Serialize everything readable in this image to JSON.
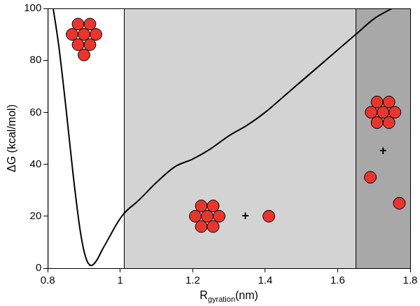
{
  "chart_data": {
    "type": "line",
    "x_label": "Rgyration(nm)",
    "x_label_subscript": "gyration",
    "y_label": "ΔG (kcal/mol)",
    "x": [
      0.815,
      0.83,
      0.85,
      0.87,
      0.89,
      0.905,
      0.92,
      0.935,
      0.95,
      0.97,
      0.99,
      1.01,
      1.05,
      1.1,
      1.15,
      1.2,
      1.25,
      1.3,
      1.35,
      1.4,
      1.45,
      1.5,
      1.55,
      1.6,
      1.65,
      1.7,
      1.75
    ],
    "values": [
      100,
      86,
      62,
      36,
      14,
      4,
      1,
      3,
      7,
      12,
      17,
      21,
      26,
      33,
      39,
      42,
      46,
      51,
      55,
      60,
      66,
      72,
      78,
      84,
      90,
      96,
      100
    ],
    "color": "#000000",
    "xlim": [
      0.8,
      1.8
    ],
    "xticks": [
      0.8,
      1,
      1.2,
      1.4,
      1.6,
      1.8
    ],
    "ylim": [
      0,
      100
    ],
    "yticks": [
      0,
      20,
      40,
      60,
      80,
      100
    ],
    "grid": false,
    "regions": [
      {
        "from": 1.01,
        "to": 1.65,
        "color": "#d3d3d3"
      },
      {
        "from": 1.65,
        "to": 1.8,
        "color": "#a8a8a8"
      }
    ],
    "annotations": [
      {
        "text": "+",
        "x": 1.345,
        "y": 20
      },
      {
        "text": "+",
        "x": 1.725,
        "y": 45
      }
    ]
  }
}
